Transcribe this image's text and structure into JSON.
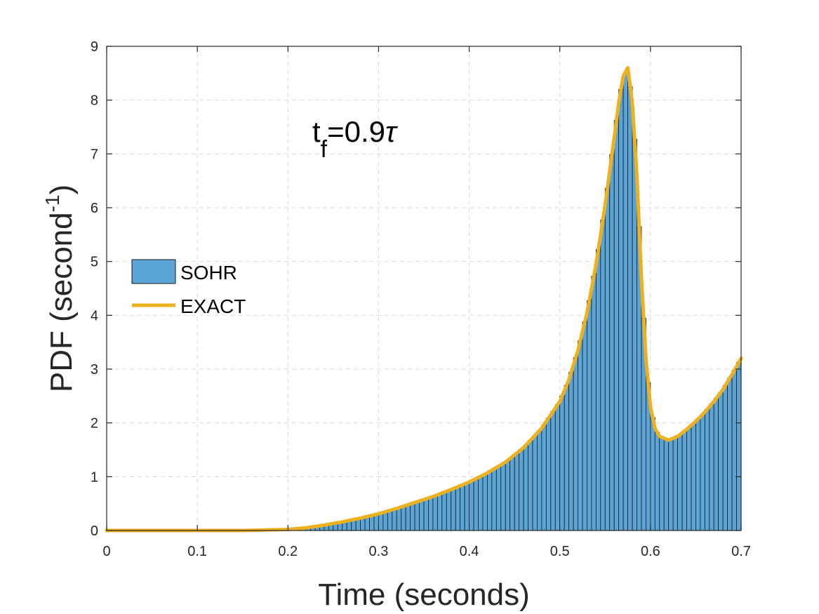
{
  "chart_data": {
    "type": "bar",
    "xlabel": "Time (seconds)",
    "ylabel_main": "PDF (second",
    "ylabel_sup": "-1",
    "ylabel_close": ")",
    "xlim": [
      0,
      0.7
    ],
    "ylim": [
      0,
      9
    ],
    "xticks": [
      "0",
      "0.1",
      "0.2",
      "0.3",
      "0.4",
      "0.5",
      "0.6",
      "0.7"
    ],
    "yticks": [
      "0",
      "1",
      "2",
      "3",
      "4",
      "5",
      "6",
      "7",
      "8",
      "9"
    ],
    "grid": true,
    "legend_placement": "middle-left",
    "annotation": {
      "main": "t",
      "sub": "f",
      "rest": "=0.9",
      "greek": "τ"
    },
    "colors": {
      "bars": "#5ba4d6",
      "bar_edge": "#1a1a1a",
      "curve": "#EDB120",
      "grid": "#d9d9d9",
      "axis": "#262626"
    },
    "bin_width": 0.005,
    "series": [
      {
        "name": "SOHR",
        "kind": "histogram",
        "x": [
          0.0,
          0.05,
          0.1,
          0.15,
          0.2,
          0.22,
          0.24,
          0.26,
          0.28,
          0.3,
          0.32,
          0.34,
          0.36,
          0.38,
          0.4,
          0.42,
          0.44,
          0.46,
          0.48,
          0.5,
          0.51,
          0.52,
          0.53,
          0.54,
          0.55,
          0.56,
          0.565,
          0.57,
          0.575,
          0.58,
          0.585,
          0.59,
          0.595,
          0.6,
          0.605,
          0.61,
          0.62,
          0.63,
          0.64,
          0.65,
          0.66,
          0.67,
          0.68,
          0.69,
          0.7
        ],
        "y": [
          0.0,
          0.0,
          0.0,
          0.0,
          0.02,
          0.05,
          0.1,
          0.16,
          0.23,
          0.31,
          0.41,
          0.52,
          0.63,
          0.76,
          0.9,
          1.07,
          1.27,
          1.54,
          1.9,
          2.4,
          2.8,
          3.35,
          4.05,
          4.95,
          6.05,
          7.3,
          7.95,
          8.45,
          8.55,
          7.95,
          6.6,
          4.7,
          3.2,
          2.3,
          1.9,
          1.75,
          1.68,
          1.75,
          1.88,
          2.03,
          2.2,
          2.4,
          2.62,
          2.9,
          3.2
        ]
      },
      {
        "name": "EXACT",
        "kind": "line",
        "x": [
          0.0,
          0.05,
          0.1,
          0.15,
          0.2,
          0.22,
          0.24,
          0.26,
          0.28,
          0.3,
          0.32,
          0.34,
          0.36,
          0.38,
          0.4,
          0.42,
          0.44,
          0.46,
          0.48,
          0.5,
          0.51,
          0.52,
          0.53,
          0.54,
          0.55,
          0.56,
          0.565,
          0.57,
          0.575,
          0.58,
          0.585,
          0.59,
          0.595,
          0.6,
          0.605,
          0.61,
          0.62,
          0.63,
          0.64,
          0.65,
          0.66,
          0.67,
          0.68,
          0.69,
          0.7
        ],
        "y": [
          0.0,
          0.0,
          0.0,
          0.0,
          0.02,
          0.05,
          0.1,
          0.16,
          0.23,
          0.31,
          0.41,
          0.52,
          0.63,
          0.76,
          0.9,
          1.07,
          1.27,
          1.54,
          1.9,
          2.4,
          2.8,
          3.35,
          4.05,
          4.95,
          6.05,
          7.3,
          7.95,
          8.45,
          8.6,
          7.95,
          6.6,
          4.7,
          3.2,
          2.3,
          1.9,
          1.75,
          1.68,
          1.75,
          1.88,
          2.03,
          2.2,
          2.4,
          2.62,
          2.9,
          3.2
        ]
      }
    ]
  }
}
